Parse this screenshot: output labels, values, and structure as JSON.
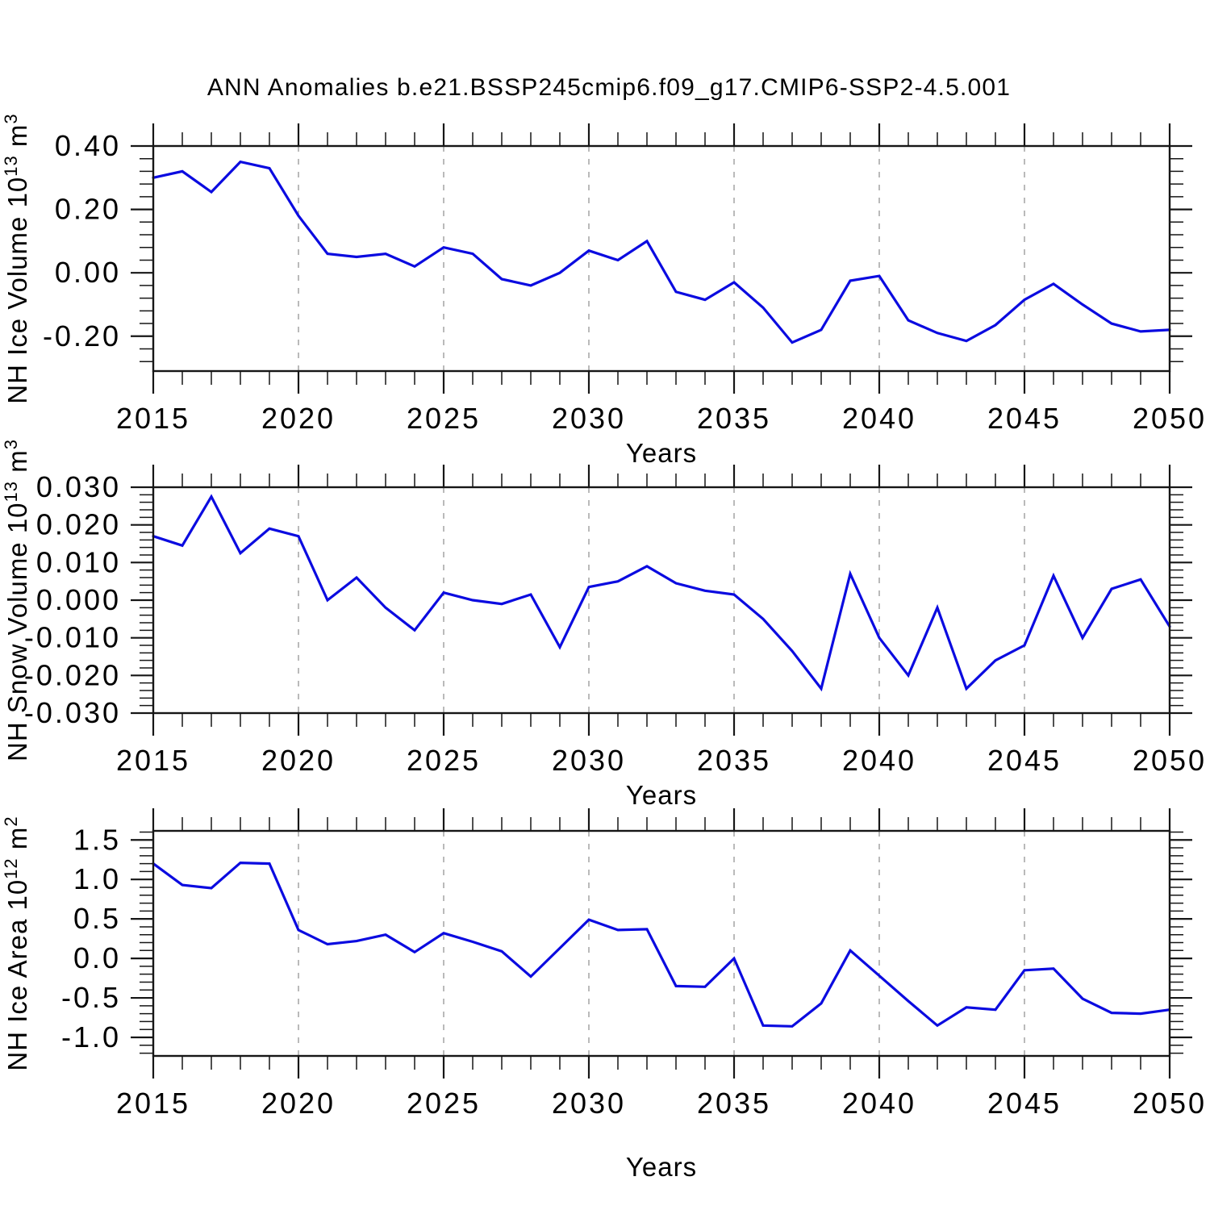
{
  "title": "ANN Anomalies b.e21.BSSP245cmip6.f09_g17.CMIP6-SSP2-4.5.001",
  "colors": {
    "line": "#0b0be0",
    "grid": "#9c9c9c",
    "axis": "#161616",
    "text": "#000000",
    "background": "#ffffff"
  },
  "x_axis": {
    "label": "Years",
    "start_year": 2015,
    "end_year": 2050,
    "major_step": 5,
    "major_labels": [
      "2015",
      "2020",
      "2025",
      "2030",
      "2035",
      "2040",
      "2045",
      "2050"
    ],
    "gridline_years": [
      2020,
      2025,
      2030,
      2035,
      2040,
      2045
    ]
  },
  "chart_data": [
    {
      "type": "line",
      "name": "nh-ice-volume",
      "ylabel": "NH Ice Volume 10^13 m^3",
      "ylabel_parts": [
        {
          "text": "NH Ice Volume 10"
        },
        {
          "text": "13",
          "sup": true
        },
        {
          "text": " m"
        },
        {
          "text": "3",
          "sup": true
        }
      ],
      "xlabel": "Years",
      "ylim": [
        -0.31,
        0.4
      ],
      "y_minor_step": 0.04,
      "grid": "vertical-dashed",
      "legend": "none",
      "y_ticks": [
        {
          "value": 0.4,
          "label": "0.40"
        },
        {
          "value": 0.2,
          "label": "0.20"
        },
        {
          "value": 0.0,
          "label": "0.00"
        },
        {
          "value": -0.2,
          "label": "-0.20"
        }
      ],
      "x": [
        2015,
        2016,
        2017,
        2018,
        2019,
        2020,
        2021,
        2022,
        2023,
        2024,
        2025,
        2026,
        2027,
        2028,
        2029,
        2030,
        2031,
        2032,
        2033,
        2034,
        2035,
        2036,
        2037,
        2038,
        2039,
        2040,
        2041,
        2042,
        2043,
        2044,
        2045,
        2046,
        2047,
        2048,
        2049,
        2050
      ],
      "values": [
        0.3,
        0.32,
        0.255,
        0.35,
        0.33,
        0.18,
        0.06,
        0.05,
        0.06,
        0.02,
        0.08,
        0.06,
        -0.02,
        -0.04,
        0.0,
        0.07,
        0.04,
        0.1,
        -0.06,
        -0.085,
        -0.03,
        -0.11,
        -0.22,
        -0.18,
        -0.025,
        -0.01,
        -0.15,
        -0.19,
        -0.215,
        -0.165,
        -0.085,
        -0.035,
        -0.1,
        -0.16,
        -0.185,
        -0.18
      ]
    },
    {
      "type": "line",
      "name": "nh-snow-volume",
      "ylabel": "NH Snow Volume 10^13 m^3",
      "ylabel_parts": [
        {
          "text": "NH Snow Volume 10"
        },
        {
          "text": "13",
          "sup": true
        },
        {
          "text": " m"
        },
        {
          "text": "3",
          "sup": true
        }
      ],
      "xlabel": "Years",
      "ylim": [
        -0.03,
        0.03
      ],
      "y_minor_step": 0.002,
      "grid": "vertical-dashed",
      "legend": "none",
      "y_ticks": [
        {
          "value": 0.03,
          "label": "0.030"
        },
        {
          "value": 0.02,
          "label": "0.020"
        },
        {
          "value": 0.01,
          "label": "0.010"
        },
        {
          "value": 0.0,
          "label": "0.000"
        },
        {
          "value": -0.01,
          "label": "-0.010"
        },
        {
          "value": -0.02,
          "label": "-0.020"
        },
        {
          "value": -0.03,
          "label": "-0.030"
        }
      ],
      "x": [
        2015,
        2016,
        2017,
        2018,
        2019,
        2020,
        2021,
        2022,
        2023,
        2024,
        2025,
        2026,
        2027,
        2028,
        2029,
        2030,
        2031,
        2032,
        2033,
        2034,
        2035,
        2036,
        2037,
        2038,
        2039,
        2040,
        2041,
        2042,
        2043,
        2044,
        2045,
        2046,
        2047,
        2048,
        2049,
        2050
      ],
      "values": [
        0.017,
        0.0145,
        0.0275,
        0.0125,
        0.019,
        0.017,
        0.0,
        0.006,
        -0.002,
        -0.008,
        0.002,
        0.0,
        -0.001,
        0.0015,
        -0.0125,
        0.0035,
        0.005,
        0.009,
        0.0045,
        0.0025,
        0.0015,
        -0.005,
        -0.0135,
        -0.0235,
        0.007,
        -0.01,
        -0.02,
        -0.002,
        -0.0235,
        -0.016,
        -0.012,
        0.0065,
        -0.01,
        0.003,
        0.0055,
        -0.007
      ]
    },
    {
      "type": "line",
      "name": "nh-ice-area",
      "ylabel": "NH Ice Area 10^12 m^2",
      "ylabel_parts": [
        {
          "text": "NH Ice Area 10"
        },
        {
          "text": "12",
          "sup": true
        },
        {
          "text": " m"
        },
        {
          "text": "2",
          "sup": true
        }
      ],
      "xlabel": "Years",
      "ylim": [
        -1.235,
        1.615
      ],
      "y_minor_step": 0.1,
      "grid": "vertical-dashed",
      "legend": "none",
      "y_ticks": [
        {
          "value": 1.5,
          "label": "1.5"
        },
        {
          "value": 1.0,
          "label": "1.0"
        },
        {
          "value": 0.5,
          "label": "0.5"
        },
        {
          "value": 0.0,
          "label": "0.0"
        },
        {
          "value": -0.5,
          "label": "-0.5"
        },
        {
          "value": -1.0,
          "label": "-1.0"
        }
      ],
      "x": [
        2015,
        2016,
        2017,
        2018,
        2019,
        2020,
        2021,
        2022,
        2023,
        2024,
        2025,
        2026,
        2027,
        2028,
        2029,
        2030,
        2031,
        2032,
        2033,
        2034,
        2035,
        2036,
        2037,
        2038,
        2039,
        2040,
        2041,
        2042,
        2043,
        2044,
        2045,
        2046,
        2047,
        2048,
        2049,
        2050
      ],
      "values": [
        1.2,
        0.93,
        0.89,
        1.21,
        1.2,
        0.36,
        0.18,
        0.22,
        0.3,
        0.08,
        0.32,
        0.21,
        0.09,
        -0.23,
        0.13,
        0.49,
        0.36,
        0.37,
        -0.35,
        -0.36,
        0.0,
        -0.85,
        -0.86,
        -0.57,
        0.1,
        -0.22,
        -0.54,
        -0.85,
        -0.62,
        -0.65,
        -0.15,
        -0.13,
        -0.51,
        -0.69,
        -0.7,
        -0.65
      ]
    }
  ]
}
